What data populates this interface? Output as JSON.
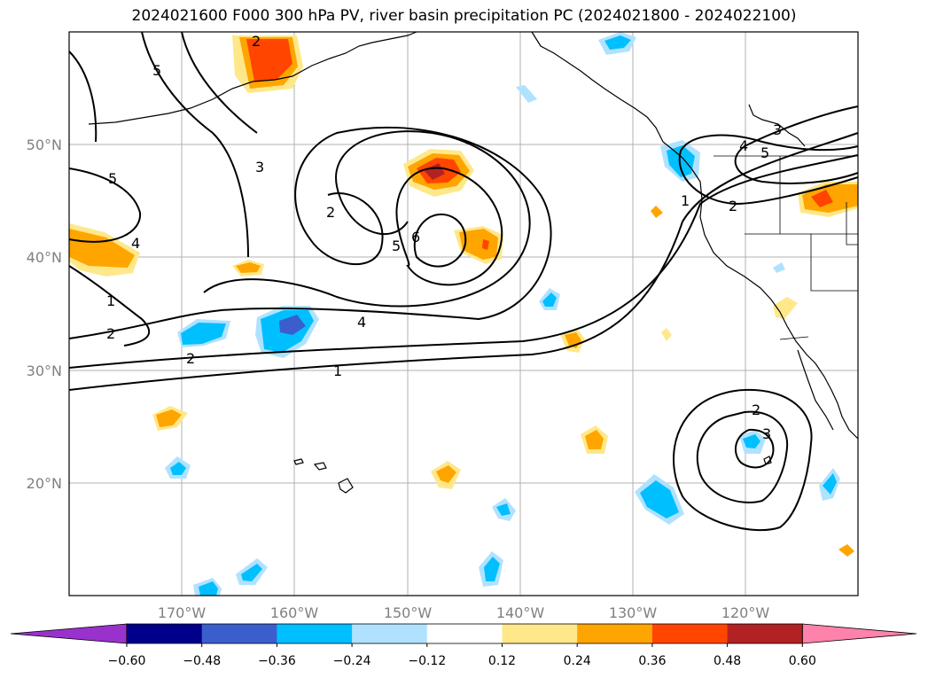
{
  "title": "2024021600 F000 300 hPa PV, river basin precipitation PC (2024021800 - 2024022100)",
  "map": {
    "lat_labels": [
      "50°N",
      "40°N",
      "30°N",
      "20°N"
    ],
    "lon_labels": [
      "170°W",
      "160°W",
      "150°W",
      "140°W",
      "130°W",
      "120°W"
    ],
    "contour_labels": [
      "5",
      "3",
      "2",
      "5",
      "4",
      "1",
      "2",
      "2",
      "1",
      "4",
      "6",
      "5",
      "2",
      "4",
      "3",
      "5",
      "1",
      "2",
      "2",
      "3"
    ]
  },
  "colorbar": {
    "tick_labels": [
      "−0.60",
      "−0.48",
      "−0.36",
      "−0.24",
      "−0.12",
      "0.12",
      "0.24",
      "0.36",
      "0.48",
      "0.60"
    ],
    "colors": [
      "#9932cc",
      "#00008b",
      "#3a5fcd",
      "#00bfff",
      "#b0e2ff",
      "#ffffff",
      "#ffe88a",
      "#ffa500",
      "#ff4500",
      "#b22222",
      "#ff82ab"
    ]
  }
}
